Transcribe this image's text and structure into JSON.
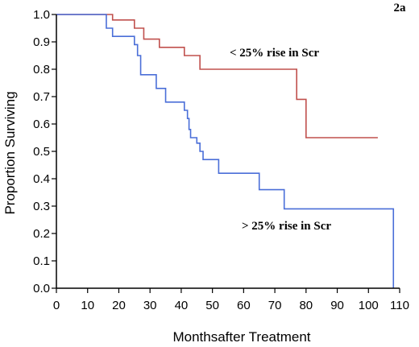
{
  "chart_data": {
    "type": "line",
    "subtype": "step",
    "panel_label": "2a",
    "xlabel": "Monthsafter Treatment",
    "ylabel": "Proportion Surviving",
    "xlim": [
      0,
      110
    ],
    "ylim": [
      0,
      1.0
    ],
    "x_ticks": [
      "0",
      "10",
      "20",
      "30",
      "40",
      "50",
      "60",
      "70",
      "80",
      "90",
      "100",
      "110"
    ],
    "y_ticks": [
      "0.0",
      "0.1",
      "0.2",
      "0.3",
      "0.4",
      "0.5",
      "0.6",
      "0.7",
      "0.8",
      "0.9",
      "1.0"
    ],
    "grid": false,
    "series": [
      {
        "name": "< 25% rise in Scr",
        "color": "#c0504d",
        "x": [
          0,
          18,
          25,
          28,
          33,
          41,
          46,
          77,
          80,
          103
        ],
        "y": [
          1.0,
          0.98,
          0.95,
          0.91,
          0.88,
          0.85,
          0.8,
          0.69,
          0.55,
          0.55
        ]
      },
      {
        "name": "> 25% rise in Scr",
        "color": "#4a6ed8",
        "x": [
          0,
          16,
          18,
          25,
          26,
          27,
          32,
          35,
          41,
          42,
          42.5,
          43,
          45,
          46,
          47,
          48,
          52,
          65,
          73,
          108,
          108
        ],
        "y": [
          1.0,
          0.95,
          0.92,
          0.89,
          0.85,
          0.78,
          0.73,
          0.68,
          0.65,
          0.62,
          0.58,
          0.55,
          0.53,
          0.5,
          0.47,
          0.47,
          0.42,
          0.36,
          0.29,
          0.29,
          0.0
        ]
      }
    ]
  }
}
